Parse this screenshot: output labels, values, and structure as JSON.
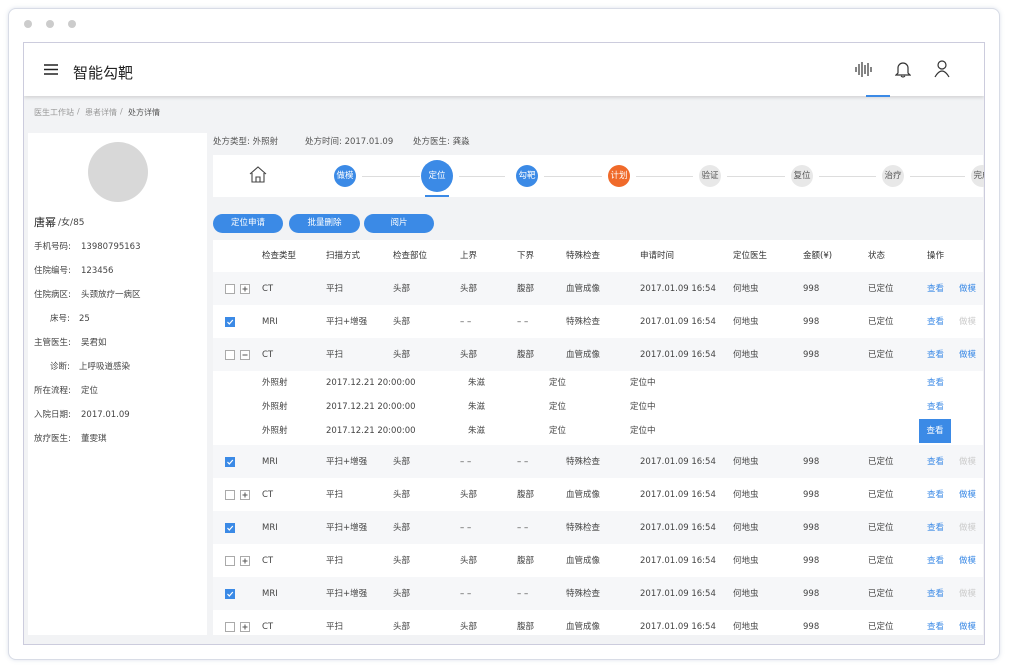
{
  "app": {
    "title": "智能勾靶"
  },
  "breadcrumb": {
    "items": [
      "医生工作站",
      "患者详情",
      "处方详情"
    ],
    "separator": "/"
  },
  "patient": {
    "name": "唐幂",
    "gender_age": "/女/85",
    "fields": [
      {
        "label": "手机号码:",
        "value": "13980795163"
      },
      {
        "label": "住院编号:",
        "value": "123456"
      },
      {
        "label": "住院病区:",
        "value": "头颈放疗一病区"
      },
      {
        "label": "床号:",
        "value": "25",
        "indent": true
      },
      {
        "label": "主管医生:",
        "value": "吴君如"
      },
      {
        "label": "诊断:",
        "value": "上呼吸道感染",
        "indent": true
      },
      {
        "label": "所在流程:",
        "value": "定位"
      },
      {
        "label": "入院日期:",
        "value": "2017.01.09"
      },
      {
        "label": "放疗医生:",
        "value": "董雯琪"
      }
    ]
  },
  "prescription": [
    "处方类型: 外照射",
    "处方时间: 2017.01.09",
    "处方医生: 龚淼"
  ],
  "steps": [
    {
      "label": "做模",
      "state": "done"
    },
    {
      "label": "定位",
      "state": "current"
    },
    {
      "label": "勾靶",
      "state": "done"
    },
    {
      "label": "计划",
      "state": "warning"
    },
    {
      "label": "验证",
      "state": "todo"
    },
    {
      "label": "复位",
      "state": "todo"
    },
    {
      "label": "治疗",
      "state": "todo"
    },
    {
      "label": "完成",
      "state": "todo"
    }
  ],
  "buttons": [
    "定位申请",
    "批量删除",
    "阅片"
  ],
  "table": {
    "headers": [
      "检查类型",
      "扫描方式",
      "检查部位",
      "上界",
      "下界",
      "特殊检查",
      "申请时间",
      "定位医生",
      "金额(¥)",
      "状态",
      "操作"
    ],
    "rows": [
      {
        "checked": false,
        "expanded": false,
        "cells": [
          "CT",
          "平扫",
          "头部",
          "头部",
          "腹部",
          "血管成像",
          "2017.01.09 16:54",
          "何地虫",
          "998",
          "已定位"
        ],
        "actions": [
          {
            "text": "查看",
            "disabled": false
          },
          {
            "text": "做模",
            "disabled": false
          }
        ]
      },
      {
        "checked": true,
        "expanded": null,
        "cells": [
          "MRI",
          "平扫+增强",
          "头部",
          "– –",
          "– –",
          "特殊检查",
          "2017.01.09 16:54",
          "何地虫",
          "998",
          "已定位"
        ],
        "actions": [
          {
            "text": "查看",
            "disabled": false
          },
          {
            "text": "做模",
            "disabled": true
          }
        ]
      },
      {
        "checked": false,
        "expanded": true,
        "cells": [
          "CT",
          "平扫",
          "头部",
          "头部",
          "腹部",
          "血管成像",
          "2017.01.09 16:54",
          "何地虫",
          "998",
          "已定位"
        ],
        "actions": [
          {
            "text": "查看",
            "disabled": false
          },
          {
            "text": "做模",
            "disabled": false
          }
        ],
        "children": [
          {
            "cells": [
              "外照射",
              "2017.12.21 20:00:00",
              "朱滋",
              "定位",
              "定位中"
            ],
            "action": "查看",
            "highlight": false
          },
          {
            "cells": [
              "外照射",
              "2017.12.21 20:00:00",
              "朱滋",
              "定位",
              "定位中"
            ],
            "action": "查看",
            "highlight": false
          },
          {
            "cells": [
              "外照射",
              "2017.12.21 20:00:00",
              "朱滋",
              "定位",
              "定位中"
            ],
            "action": "查看",
            "highlight": true
          }
        ]
      },
      {
        "checked": true,
        "expanded": null,
        "cells": [
          "MRI",
          "平扫+增强",
          "头部",
          "– –",
          "– –",
          "特殊检查",
          "2017.01.09 16:54",
          "何地虫",
          "998",
          "已定位"
        ],
        "actions": [
          {
            "text": "查看",
            "disabled": false
          },
          {
            "text": "做模",
            "disabled": true
          }
        ]
      },
      {
        "checked": false,
        "expanded": false,
        "cells": [
          "CT",
          "平扫",
          "头部",
          "头部",
          "腹部",
          "血管成像",
          "2017.01.09 16:54",
          "何地虫",
          "998",
          "已定位"
        ],
        "actions": [
          {
            "text": "查看",
            "disabled": false
          },
          {
            "text": "做模",
            "disabled": false
          }
        ]
      },
      {
        "checked": true,
        "expanded": null,
        "cells": [
          "MRI",
          "平扫+增强",
          "头部",
          "– –",
          "– –",
          "特殊检查",
          "2017.01.09 16:54",
          "何地虫",
          "998",
          "已定位"
        ],
        "actions": [
          {
            "text": "查看",
            "disabled": false
          },
          {
            "text": "做模",
            "disabled": true
          }
        ]
      },
      {
        "checked": false,
        "expanded": false,
        "cells": [
          "CT",
          "平扫",
          "头部",
          "头部",
          "腹部",
          "血管成像",
          "2017.01.09 16:54",
          "何地虫",
          "998",
          "已定位"
        ],
        "actions": [
          {
            "text": "查看",
            "disabled": false
          },
          {
            "text": "做模",
            "disabled": false
          }
        ]
      },
      {
        "checked": true,
        "expanded": null,
        "cells": [
          "MRI",
          "平扫+增强",
          "头部",
          "– –",
          "– –",
          "特殊检查",
          "2017.01.09 16:54",
          "何地虫",
          "998",
          "已定位"
        ],
        "actions": [
          {
            "text": "查看",
            "disabled": false
          },
          {
            "text": "做模",
            "disabled": true
          }
        ]
      },
      {
        "checked": false,
        "expanded": false,
        "cells": [
          "CT",
          "平扫",
          "头部",
          "头部",
          "腹部",
          "血管成像",
          "2017.01.09 16:54",
          "何地虫",
          "998",
          "已定位"
        ],
        "actions": [
          {
            "text": "查看",
            "disabled": false
          },
          {
            "text": "做模",
            "disabled": false
          }
        ]
      }
    ]
  }
}
